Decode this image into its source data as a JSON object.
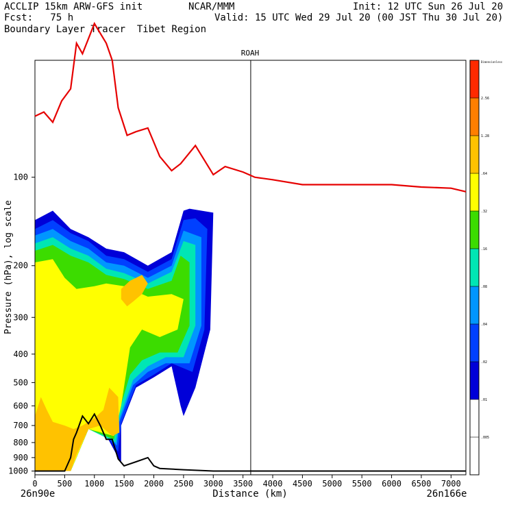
{
  "header": {
    "left_line1": "ACCLIP 15km ARW-GFS init",
    "center_line1": "NCAR/MMM",
    "right_line1": "Init: 12 UTC Sun 26 Jul 20",
    "left_line2": "Fcst:   75 h",
    "right_line2": "Valid: 15 UTC Wed 29 Jul 20 (00 JST Thu 30 Jul 20)",
    "line3": "Boundary Layer Tracer  Tibet Region"
  },
  "chart_data": {
    "type": "heatmap",
    "title": "ROAH",
    "xlabel": "Distance (km)",
    "ylabel": "Pressure (hPa), log scale",
    "x_ticks": [
      0,
      500,
      1000,
      1500,
      2000,
      2500,
      3000,
      3500,
      4000,
      4500,
      5000,
      5500,
      6000,
      6500,
      7000
    ],
    "x_tick_labels": [
      "0",
      "500",
      "1000",
      "1500",
      "2000",
      "2500",
      "3000",
      "3500",
      "4000",
      "4500",
      "5000",
      "5500",
      "6000",
      "6500",
      "7000"
    ],
    "xlim": [
      0,
      7250
    ],
    "y_ticks": [
      100,
      200,
      300,
      400,
      500,
      600,
      700,
      800,
      900,
      1000
    ],
    "y_tick_labels": [
      "100",
      "200",
      "300",
      "400",
      "500",
      "600",
      "700",
      "800",
      "900",
      "1000"
    ],
    "ylim": [
      1030,
      40
    ],
    "y_scale": "log",
    "left_endpoint": "26n90e",
    "right_endpoint": "26n166e",
    "vertical_marker_x": 3630,
    "colorbar": {
      "top_label": "Dimensionless",
      "levels": [
        "2.56",
        "1.28",
        ".64",
        ".32",
        ".16",
        ".08",
        ".04",
        ".02",
        ".01",
        ".005"
      ],
      "colors": [
        "#ff2a00",
        "#ff7f00",
        "#ffc200",
        "#ffff00",
        "#3cdc00",
        "#00e6b4",
        "#0096ff",
        "#0040ff",
        "#0000d8",
        "#ffffff",
        "#ffffff"
      ]
    },
    "tropopause_line": {
      "color": "#e60000",
      "x": [
        0,
        150,
        300,
        450,
        600,
        700,
        800,
        1000,
        1200,
        1300,
        1400,
        1550,
        1700,
        1900,
        2100,
        2300,
        2450,
        2700,
        3000,
        3200,
        3500,
        3700,
        4000,
        4500,
        5000,
        5500,
        6000,
        6500,
        7000,
        7250
      ],
      "p": [
        62,
        60,
        65,
        55,
        50,
        35,
        38,
        30,
        35,
        40,
        58,
        72,
        70,
        68,
        85,
        95,
        90,
        78,
        98,
        92,
        96,
        100,
        102,
        106,
        106,
        106,
        106,
        108,
        109,
        112
      ]
    },
    "terrain_line": {
      "color": "#000000",
      "x": [
        0,
        300,
        500,
        600,
        650,
        700,
        800,
        900,
        1000,
        1100,
        1200,
        1300,
        1400,
        1500,
        1700,
        1900,
        2000,
        2100,
        2500,
        3000,
        3500,
        7250
      ],
      "p": [
        1000,
        1000,
        1000,
        900,
        780,
        740,
        650,
        690,
        640,
        700,
        780,
        780,
        910,
        960,
        930,
        900,
        960,
        980,
        990,
        1000,
        1000,
        1000
      ]
    }
  }
}
